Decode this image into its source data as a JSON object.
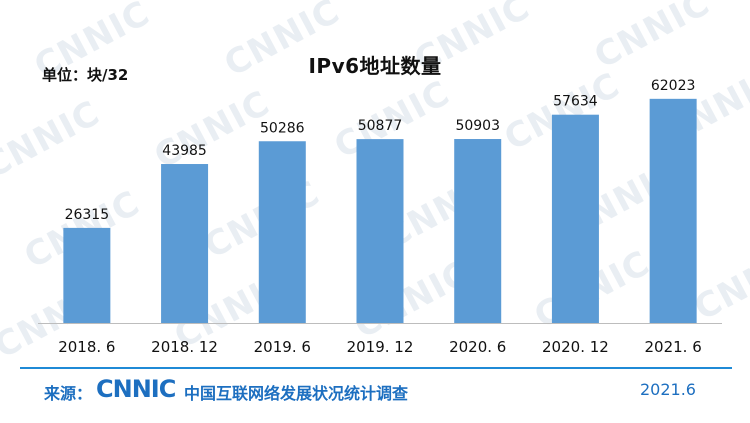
{
  "chart_data": {
    "type": "bar",
    "title": "IPv6地址数量",
    "unit_label": "单位：块/32",
    "categories": [
      "2018. 6",
      "2018. 12",
      "2019. 6",
      "2019. 12",
      "2020. 6",
      "2020. 12",
      "2021. 6"
    ],
    "values": [
      26315,
      43985,
      50286,
      50877,
      50903,
      57634,
      62023
    ],
    "xlabel": "",
    "ylabel": "",
    "ylim": [
      0,
      70000
    ],
    "grid": false,
    "legend": "none",
    "colors": {
      "bar": "#5b9bd5",
      "axis": "#bdbdbd"
    }
  },
  "footer": {
    "source_label": "来源：",
    "logo_text": "CNNIC",
    "report_name": "中国互联网络发展状况统计调查",
    "date": "2021.6"
  },
  "watermark_text": "CNNIC"
}
